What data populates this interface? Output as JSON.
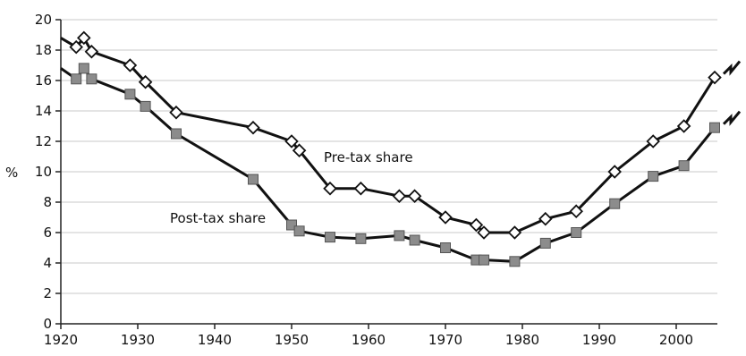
{
  "chart_data": {
    "type": "line",
    "title": "",
    "xlabel": "",
    "ylabel": "%",
    "xlim": [
      1920,
      2007
    ],
    "ylim": [
      0,
      20
    ],
    "x_ticks": [
      1920,
      1930,
      1940,
      1950,
      1960,
      1970,
      1980,
      1990,
      2000
    ],
    "y_ticks": [
      0,
      2,
      4,
      6,
      8,
      10,
      12,
      14,
      16,
      18,
      20
    ],
    "grid": "horizontal",
    "legend": "none",
    "series": [
      {
        "name": "Pre-tax share",
        "marker": "diamond",
        "color": "#111111",
        "points": [
          [
            1920,
            18.8
          ],
          [
            1922,
            18.2
          ],
          [
            1923,
            18.8
          ],
          [
            1924,
            17.9
          ],
          [
            1929,
            17.0
          ],
          [
            1931,
            15.9
          ],
          [
            1935,
            13.9
          ],
          [
            1945,
            12.9
          ],
          [
            1950,
            12.0
          ],
          [
            1951,
            11.4
          ],
          [
            1955,
            8.9
          ],
          [
            1959,
            8.9
          ],
          [
            1964,
            8.4
          ],
          [
            1966,
            8.4
          ],
          [
            1970,
            7.0
          ],
          [
            1974,
            6.5
          ],
          [
            1975,
            6.0
          ],
          [
            1979,
            6.0
          ],
          [
            1983,
            6.9
          ],
          [
            1987,
            7.4
          ],
          [
            1992,
            10.0
          ],
          [
            1997,
            12.0
          ],
          [
            2001,
            13.0
          ],
          [
            2005,
            16.2
          ]
        ]
      },
      {
        "name": "Post-tax share",
        "marker": "square",
        "color": "#8c8c8c",
        "points": [
          [
            1920,
            16.8
          ],
          [
            1922,
            16.1
          ],
          [
            1923,
            16.8
          ],
          [
            1924,
            16.1
          ],
          [
            1929,
            15.1
          ],
          [
            1931,
            14.3
          ],
          [
            1935,
            12.5
          ],
          [
            1945,
            9.5
          ],
          [
            1950,
            6.5
          ],
          [
            1951,
            6.1
          ],
          [
            1955,
            5.7
          ],
          [
            1959,
            5.6
          ],
          [
            1964,
            5.8
          ],
          [
            1966,
            5.5
          ],
          [
            1970,
            5.0
          ],
          [
            1974,
            4.2
          ],
          [
            1975,
            4.2
          ],
          [
            1979,
            4.1
          ],
          [
            1983,
            5.3
          ],
          [
            1987,
            6.0
          ],
          [
            1992,
            7.9
          ],
          [
            1997,
            9.7
          ],
          [
            2001,
            10.4
          ],
          [
            2005,
            12.9
          ]
        ]
      }
    ],
    "annotations": {
      "pre_tax_label": "Pre-tax share",
      "post_tax_label": "Post-tax share"
    }
  }
}
